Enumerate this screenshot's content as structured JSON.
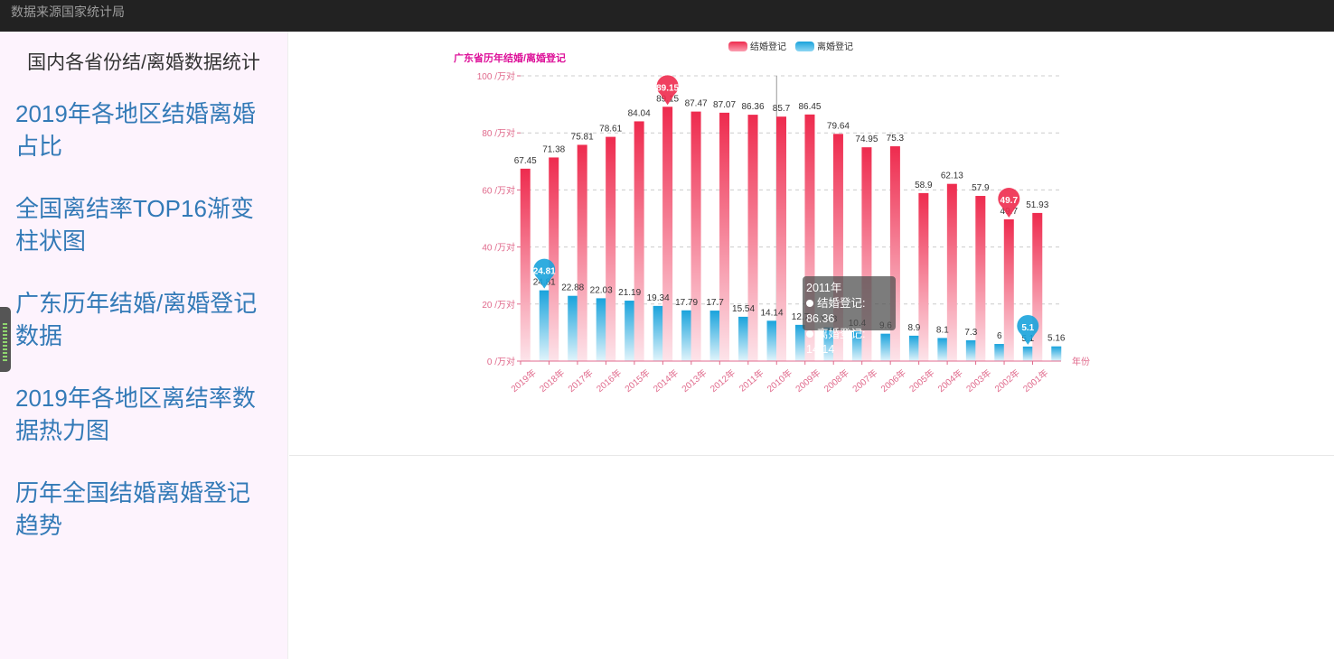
{
  "topbar": {
    "title": "数据来源国家统计局"
  },
  "sidebar": {
    "title": "国内各省份结/离婚数据统计",
    "items": [
      {
        "label": "2019年各地区结婚离婚占比"
      },
      {
        "label": "全国离结率TOP16渐变柱状图"
      },
      {
        "label": "广东历年结婚/离婚登记数据"
      },
      {
        "label": "2019年各地区离结率数据热力图"
      },
      {
        "label": "历年全国结婚离婚登记趋势"
      }
    ]
  },
  "tooltip": {
    "title": "2011年",
    "rows": [
      {
        "name": "结婚登记",
        "value": "86.36"
      },
      {
        "name": "离婚登记",
        "value": "14.14"
      }
    ]
  },
  "chart_data": {
    "type": "bar",
    "title": "广东省历年结婚/离婚登记",
    "xlabel": "年份",
    "ylabel": "",
    "y_unit": "/万对",
    "ylim": [
      0,
      100
    ],
    "yticks": [
      0,
      20,
      40,
      60,
      80,
      100
    ],
    "grid": true,
    "legend_position": "top-center",
    "categories": [
      "2019年",
      "2018年",
      "2017年",
      "2016年",
      "2015年",
      "2014年",
      "2013年",
      "2012年",
      "2011年",
      "2010年",
      "2009年",
      "2008年",
      "2007年",
      "2006年",
      "2005年",
      "2004年",
      "2003年",
      "2002年",
      "2001年"
    ],
    "series": [
      {
        "name": "结婚登记",
        "color": "#ee2b4e",
        "values": [
          67.45,
          71.38,
          75.81,
          78.61,
          84.04,
          89.15,
          87.47,
          87.07,
          86.36,
          85.7,
          86.45,
          79.64,
          74.95,
          75.3,
          58.9,
          62.13,
          57.9,
          49.7,
          51.93
        ],
        "max_marker": "89.15",
        "min_marker": "49.7"
      },
      {
        "name": "离婚登记",
        "color": "#1aa3dc",
        "values": [
          24.81,
          22.88,
          22.03,
          21.19,
          19.34,
          17.79,
          17.7,
          15.54,
          14.14,
          12.7,
          11.8,
          10.4,
          9.6,
          8.9,
          8.1,
          7.3,
          6,
          5.1,
          5.16
        ],
        "max_marker": "24.81",
        "min_marker": "5.1"
      }
    ]
  }
}
